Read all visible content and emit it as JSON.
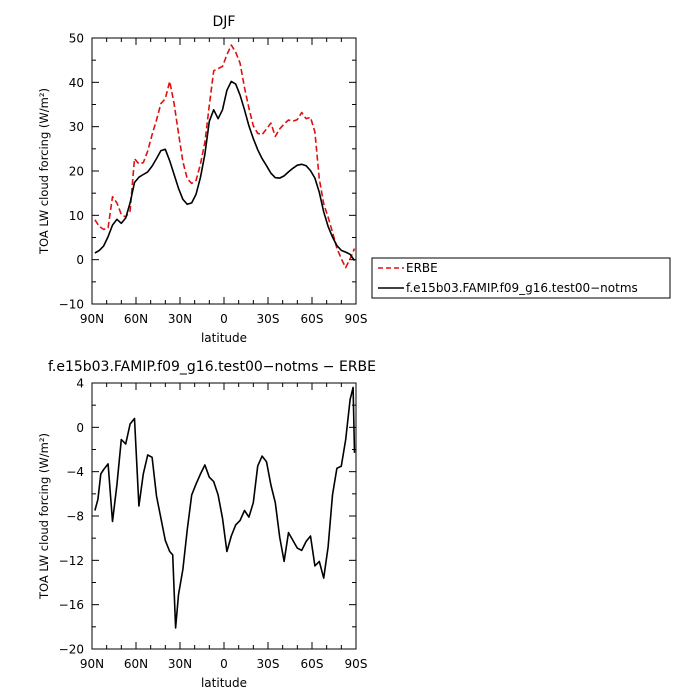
{
  "chart_data": [
    {
      "type": "line",
      "title": "DJF",
      "xlabel": "latitude",
      "ylabel": "TOA LW cloud forcing (W/m²)",
      "xlim": [
        90,
        -90
      ],
      "ylim": [
        -10,
        50
      ],
      "xticks": [
        90,
        60,
        30,
        0,
        -30,
        -60,
        -90
      ],
      "xtick_labels": [
        "90N",
        "60N",
        "30N",
        "0",
        "30S",
        "60S",
        "90S"
      ],
      "yticks": [
        -10,
        0,
        10,
        20,
        30,
        40,
        50
      ],
      "ytick_labels": [
        "−10",
        "0",
        "10",
        "20",
        "30",
        "40",
        "50"
      ],
      "legend_position": "right-middle",
      "series": [
        {
          "name": "ERBE",
          "color": "#e01010",
          "dash": "dashed",
          "x": [
            88,
            85,
            82,
            79,
            76,
            73,
            70,
            67,
            64,
            61,
            58,
            55,
            52,
            49,
            46,
            43,
            40,
            37,
            34,
            31,
            28,
            25,
            22,
            19,
            16,
            13,
            10,
            7,
            4,
            1,
            -2,
            -5,
            -8,
            -11,
            -14,
            -17,
            -20,
            -23,
            -26,
            -29,
            -32,
            -35,
            -38,
            -41,
            -44,
            -47,
            -50,
            -53,
            -56,
            -59,
            -62,
            -65,
            -68,
            -71,
            -74,
            -77,
            -80,
            -83,
            -86,
            -89
          ],
          "y": [
            9,
            7.5,
            6.8,
            7.2,
            14.2,
            12.8,
            10.2,
            9.6,
            11,
            22.8,
            21.6,
            21.9,
            24.5,
            28.2,
            31.5,
            35.2,
            36.3,
            40.2,
            35.2,
            28.5,
            22.1,
            18.2,
            17.2,
            17.9,
            21.6,
            26.5,
            34.8,
            42.6,
            43.1,
            43.6,
            46.2,
            48.4,
            46.8,
            44.3,
            38.8,
            34.2,
            30.2,
            28.5,
            28.2,
            29.5,
            30.8,
            27.8,
            29.5,
            30.6,
            31.5,
            31.2,
            31.6,
            33.2,
            31.8,
            32.1,
            28.8,
            18.2,
            12.6,
            9.6,
            6.2,
            2.6,
            0.2,
            -1.8,
            0.2,
            2.5
          ]
        },
        {
          "name": "f.e15b03.FAMIP.f09_g16.test00−notms",
          "color": "#000000",
          "dash": "solid",
          "x": [
            88,
            85,
            82,
            79,
            76,
            73,
            70,
            67,
            64,
            61,
            58,
            55,
            52,
            49,
            46,
            43,
            40,
            37,
            34,
            31,
            28,
            25,
            22,
            19,
            16,
            13,
            10,
            7,
            4,
            1,
            -2,
            -5,
            -8,
            -11,
            -14,
            -17,
            -20,
            -23,
            -26,
            -29,
            -32,
            -35,
            -38,
            -41,
            -44,
            -47,
            -50,
            -53,
            -56,
            -59,
            -62,
            -65,
            -68,
            -71,
            -74,
            -77,
            -80,
            -83,
            -86,
            -89
          ],
          "y": [
            1.5,
            2.1,
            3.1,
            5.2,
            7.8,
            9.1,
            8.2,
            9.4,
            12.8,
            17.4,
            18.6,
            19.2,
            19.8,
            21.1,
            22.8,
            24.6,
            24.9,
            22.3,
            19.2,
            16.1,
            13.6,
            12.5,
            12.8,
            14.8,
            18.6,
            23.8,
            31.2,
            33.8,
            31.8,
            33.8,
            38.2,
            40.2,
            39.6,
            37.1,
            33.8,
            30.2,
            27.3,
            24.8,
            22.8,
            21.2,
            19.5,
            18.5,
            18.4,
            18.9,
            19.8,
            20.6,
            21.3,
            21.5,
            21.2,
            20.1,
            18.4,
            15.2,
            10.8,
            7.5,
            5.1,
            3.2,
            2.1,
            1.7,
            1.2,
            -0.2
          ]
        }
      ]
    },
    {
      "type": "line",
      "title": "f.e15b03.FAMIP.f09_g16.test00−notms − ERBE",
      "xlabel": "latitude",
      "ylabel": "TOA LW cloud forcing (W/m²)",
      "xlim": [
        90,
        -90
      ],
      "ylim": [
        -20,
        4
      ],
      "xticks": [
        90,
        60,
        30,
        0,
        -30,
        -60,
        -90
      ],
      "xtick_labels": [
        "90N",
        "60N",
        "30N",
        "0",
        "30S",
        "60S",
        "90S"
      ],
      "yticks": [
        -20,
        -16,
        -12,
        -8,
        -4,
        0,
        4
      ],
      "ytick_labels": [
        "−20",
        "−16",
        "−12",
        "−8",
        "−4",
        "0",
        "4"
      ],
      "series": [
        {
          "color": "#000000",
          "dash": "solid",
          "x": [
            88,
            86,
            84,
            82,
            79,
            76,
            73,
            70,
            67,
            64,
            61,
            58,
            55,
            52,
            49,
            46,
            43,
            40,
            37,
            35,
            33,
            31,
            28,
            25,
            22,
            19,
            16,
            13,
            10,
            7,
            4,
            1,
            -2,
            -5,
            -8,
            -11,
            -14,
            -17,
            -20,
            -23,
            -26,
            -29,
            -32,
            -35,
            -38,
            -41,
            -44,
            -47,
            -50,
            -53,
            -56,
            -59,
            -62,
            -65,
            -68,
            -71,
            -74,
            -77,
            -80,
            -83,
            -86,
            -88,
            -89
          ],
          "y": [
            -7.5,
            -6.5,
            -4.2,
            -3.8,
            -3.3,
            -8.5,
            -5.2,
            -1.1,
            -1.5,
            0.3,
            0.8,
            -7.1,
            -4.2,
            -2.5,
            -2.7,
            -6.2,
            -8.2,
            -10.2,
            -11.2,
            -11.5,
            -18.1,
            -15.1,
            -12.8,
            -9.2,
            -6.1,
            -5.1,
            -4.2,
            -3.4,
            -4.5,
            -4.9,
            -6.1,
            -8.2,
            -11.2,
            -9.8,
            -8.8,
            -8.4,
            -7.5,
            -8.1,
            -6.8,
            -3.5,
            -2.6,
            -3.1,
            -5.2,
            -6.8,
            -9.9,
            -12.1,
            -9.5,
            -10.2,
            -10.9,
            -11.1,
            -10.3,
            -9.8,
            -12.5,
            -12.1,
            -13.6,
            -10.8,
            -6.1,
            -3.7,
            -3.5,
            -1.1,
            2.5,
            3.6,
            -2.3
          ]
        }
      ]
    }
  ]
}
